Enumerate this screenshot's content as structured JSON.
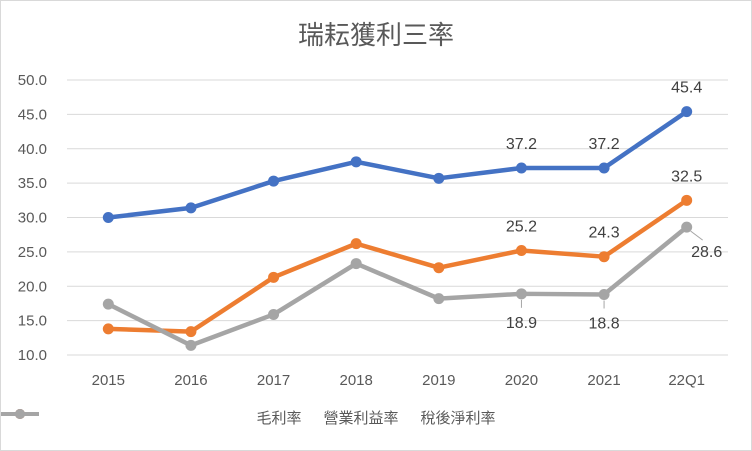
{
  "chart_data": {
    "type": "line",
    "title": "瑞耘獲利三率",
    "categories": [
      "2015",
      "2016",
      "2017",
      "2018",
      "2019",
      "2020",
      "2021",
      "22Q1"
    ],
    "ylim": [
      10.0,
      50.0
    ],
    "yticks": [
      "10.0",
      "15.0",
      "20.0",
      "25.0",
      "30.0",
      "35.0",
      "40.0",
      "45.0",
      "50.0"
    ],
    "grid": true,
    "legend_position": "bottom",
    "series": [
      {
        "name": "毛利率",
        "color": "#4472C4",
        "values": [
          30.0,
          31.4,
          35.3,
          38.1,
          35.7,
          37.2,
          37.2,
          45.4
        ]
      },
      {
        "name": "營業利益率",
        "color": "#ED7D31",
        "values": [
          13.8,
          13.4,
          21.3,
          26.2,
          22.7,
          25.2,
          24.3,
          32.5
        ]
      },
      {
        "name": "稅後淨利率",
        "color": "#A5A5A5",
        "values": [
          17.4,
          11.4,
          15.9,
          23.3,
          18.2,
          18.9,
          18.8,
          28.6
        ]
      }
    ],
    "data_labels": [
      {
        "series": 0,
        "index": 5,
        "text": "37.2"
      },
      {
        "series": 0,
        "index": 6,
        "text": "37.2"
      },
      {
        "series": 0,
        "index": 7,
        "text": "45.4"
      },
      {
        "series": 1,
        "index": 5,
        "text": "25.2"
      },
      {
        "series": 1,
        "index": 6,
        "text": "24.3"
      },
      {
        "series": 1,
        "index": 7,
        "text": "32.5"
      },
      {
        "series": 2,
        "index": 5,
        "text": "18.9"
      },
      {
        "series": 2,
        "index": 6,
        "text": "18.8"
      },
      {
        "series": 2,
        "index": 7,
        "text": "28.6"
      }
    ]
  }
}
